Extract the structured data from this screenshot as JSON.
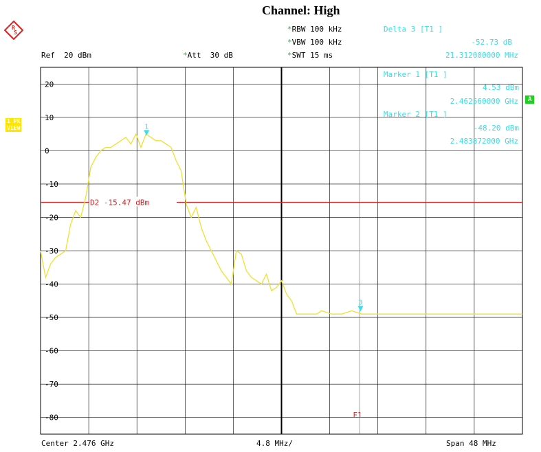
{
  "title": "Channel: High",
  "header": {
    "rbw": "RBW 100 kHz",
    "vbw": "VBW 100 kHz",
    "swt": "SWT 15 ms",
    "ref": "Ref  20 dBm",
    "att": "Att  30 dB",
    "star": "*"
  },
  "markers": {
    "delta3_label": "Delta 3 [T1 ]",
    "delta3_value": "-52.73 dB",
    "delta3_freq": "21.312000000 MHz",
    "m1_label": "Marker 1 [T1 ]",
    "m1_value": "4.53 dBm",
    "m1_freq": "2.462560000 GHz",
    "m2_label": "Marker 2 [T1 ]",
    "m2_value": "-48.20 dBm",
    "m2_freq": "2.483872000 GHz"
  },
  "side_tags": {
    "pk": "1 PK",
    "view": "VIEW",
    "a": "A"
  },
  "footer": {
    "center": "Center 2.476 GHz",
    "div": "4.8 MHz/",
    "span": "Span 48 MHz"
  },
  "colors": {
    "trace": "#f0e030",
    "marker": "#33e0e8",
    "line": "#e02020",
    "grid": "#000000"
  },
  "chart_data": {
    "type": "line",
    "xlim": [
      2.452,
      2.5
    ],
    "ylim": [
      -85,
      25
    ],
    "yticks": [
      20,
      10,
      0,
      -10,
      -20,
      -30,
      -40,
      -50,
      -60,
      -70,
      -80
    ],
    "ytick_labels": [
      "20",
      "10",
      "0",
      "-10",
      "-20",
      "-30",
      "-40",
      "-50",
      "-60",
      "-70",
      "-80"
    ],
    "display_line": {
      "label": "D2 -15.47 dBm",
      "value": -15.47
    },
    "f1_line": {
      "label": "F1",
      "x": 2.4838
    },
    "marker_points": [
      {
        "label": "1",
        "x": 2.46256,
        "y": 4.53
      },
      {
        "label": "3",
        "x": 2.48387,
        "y": -48.2
      }
    ],
    "series": [
      {
        "x": [
          2.452,
          2.4525,
          2.453,
          2.4535,
          2.454,
          2.4545,
          2.455,
          2.4555,
          2.456,
          2.4565,
          2.457,
          2.4575,
          2.458,
          2.4585,
          2.459,
          2.4595,
          2.46,
          2.4605,
          2.461,
          2.4615,
          2.462,
          2.4625,
          2.463,
          2.4635,
          2.464,
          2.4645,
          2.465,
          2.4655,
          2.466,
          2.4665,
          2.467,
          2.4675,
          2.468,
          2.4685,
          2.469,
          2.4695,
          2.47,
          2.4705,
          2.471,
          2.4715,
          2.472,
          2.4725,
          2.473,
          2.4735,
          2.474,
          2.4745,
          2.475,
          2.4755,
          2.476,
          2.4765,
          2.477,
          2.4775,
          2.478,
          2.4785,
          2.479,
          2.4795,
          2.48,
          2.481,
          2.482,
          2.483,
          2.484,
          2.485,
          2.486,
          2.487,
          2.488,
          2.489,
          2.49,
          2.491,
          2.492,
          2.493,
          2.494,
          2.495,
          2.496,
          2.497,
          2.498,
          2.499,
          2.5
        ],
        "values": [
          -30,
          -38,
          -34,
          -32,
          -31,
          -30,
          -22,
          -18,
          -20,
          -14,
          -5,
          -2,
          0,
          1,
          1,
          2,
          3,
          4,
          2,
          5,
          1,
          5,
          4,
          3,
          3,
          2,
          1,
          -3,
          -6,
          -16,
          -20,
          -17,
          -23,
          -27,
          -30,
          -33,
          -36,
          -38,
          -40,
          -30,
          -31,
          -36,
          -38,
          -39,
          -40,
          -37,
          -42,
          -41,
          -39,
          -43,
          -45,
          -49,
          -49,
          -49,
          -49,
          -49,
          -48,
          -49,
          -49,
          -48,
          -49,
          -49,
          -49,
          -49,
          -49,
          -49,
          -49,
          -49,
          -49,
          -49,
          -49,
          -49,
          -49,
          -49,
          -49,
          -49,
          -49
        ]
      }
    ]
  }
}
